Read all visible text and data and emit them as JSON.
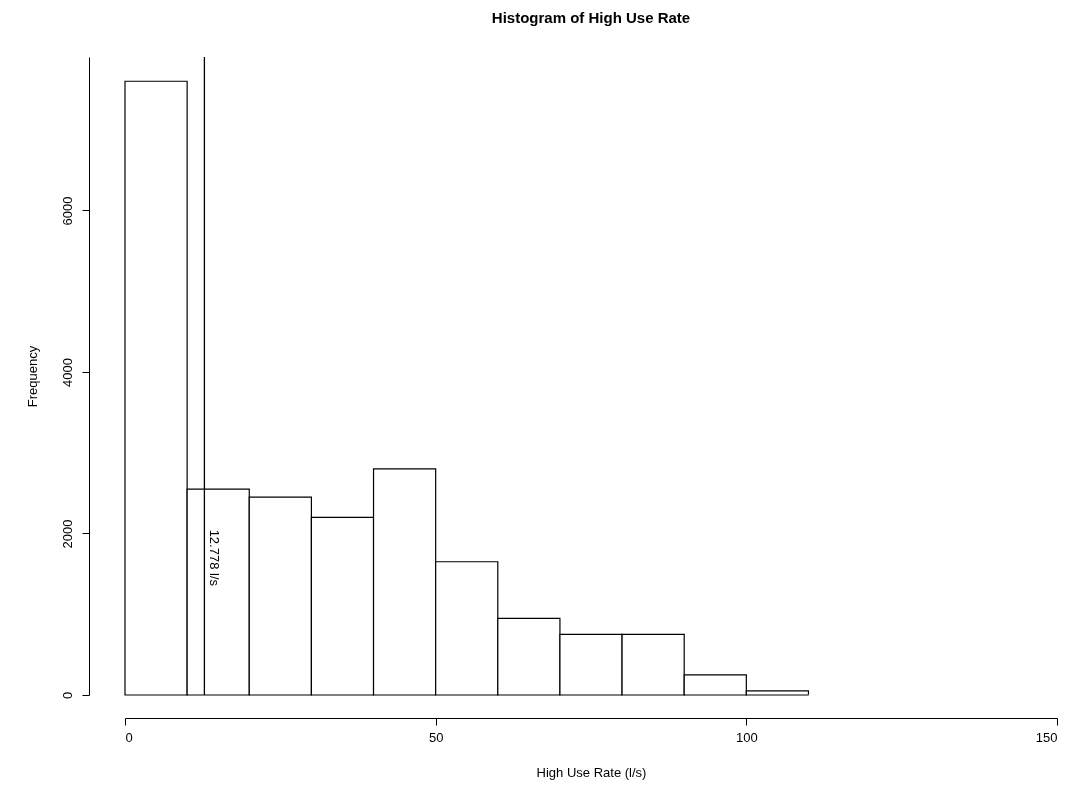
{
  "chart_data": {
    "type": "histogram",
    "title": "Histogram of High Use Rate",
    "xlabel": "High Use Rate (l/s)",
    "ylabel": "Frequency",
    "bins": [
      0,
      10,
      20,
      30,
      40,
      50,
      60,
      70,
      80,
      90,
      100,
      110,
      120,
      130,
      140,
      150
    ],
    "values": [
      7600,
      2550,
      2450,
      2200,
      2800,
      1650,
      950,
      750,
      750,
      250,
      50,
      0,
      0,
      0,
      0
    ],
    "color": "#ffffff",
    "xlim": [
      0,
      150
    ],
    "xticks": [
      0,
      50,
      100,
      150
    ],
    "ylim": [
      0,
      7900
    ],
    "yticks": [
      0,
      2000,
      4000,
      6000
    ],
    "ref_lines": [
      {
        "axis": "x",
        "value": 12.778,
        "label": "12.778 l/s",
        "color": "#000000"
      }
    ],
    "grid": false
  }
}
